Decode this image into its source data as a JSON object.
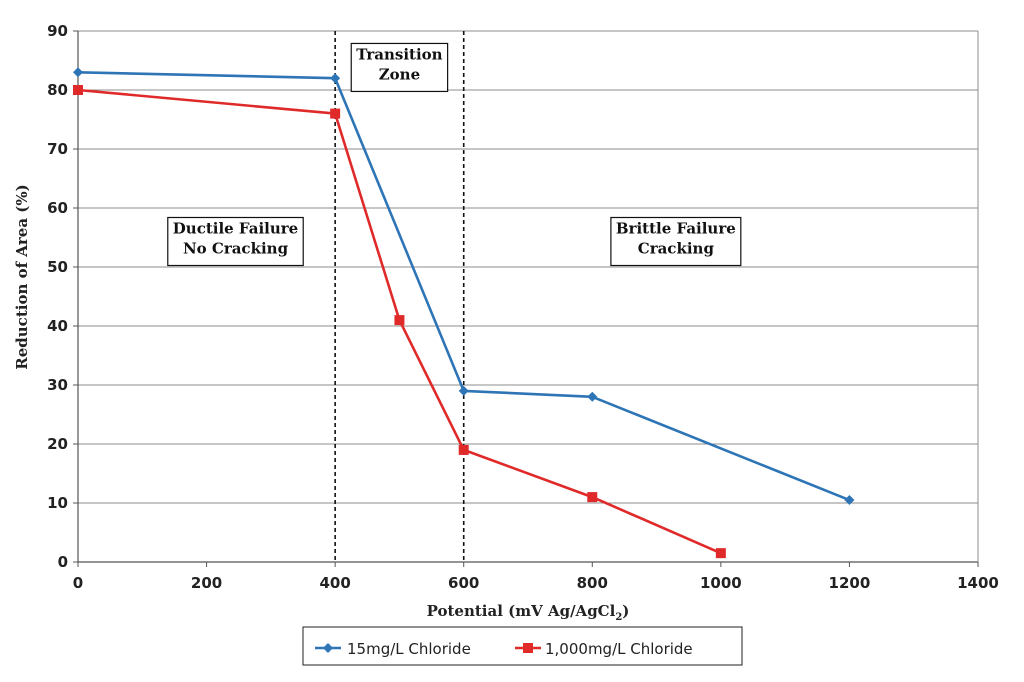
{
  "chart_data": {
    "type": "line",
    "title": "",
    "xlabel": "Potential (mV Ag/AgCl",
    "xlabel_subscript": "2",
    "xlabel_suffix": ")",
    "ylabel": "Reduction of Area (%)",
    "xlim": [
      0,
      1400
    ],
    "ylim": [
      0,
      90
    ],
    "xticks": [
      0,
      200,
      400,
      600,
      800,
      1000,
      1200,
      1400
    ],
    "yticks": [
      0,
      10,
      20,
      30,
      40,
      50,
      60,
      70,
      80,
      90
    ],
    "grid": true,
    "legend_position": "bottom",
    "series": [
      {
        "name": "15mg/L Chloride",
        "color": "#2e75b6",
        "marker": "diamond",
        "x": [
          0,
          400,
          600,
          800,
          1200
        ],
        "y": [
          83,
          82,
          29,
          28,
          10.5
        ]
      },
      {
        "name": "1,000mg/L Chloride",
        "color": "#e02a2a",
        "marker": "square",
        "x": [
          0,
          400,
          500,
          600,
          800,
          1000
        ],
        "y": [
          80,
          76,
          41,
          19,
          11,
          1.5
        ]
      }
    ],
    "vlines": [
      400,
      600
    ],
    "annotations": [
      {
        "lines": [
          "Ductile Failure",
          "No Cracking"
        ],
        "x": 245,
        "y": 55
      },
      {
        "lines": [
          "Transition",
          "Zone"
        ],
        "x": 500,
        "y": 84.5
      },
      {
        "lines": [
          "Brittle Failure",
          "Cracking"
        ],
        "x": 930,
        "y": 55
      }
    ]
  }
}
